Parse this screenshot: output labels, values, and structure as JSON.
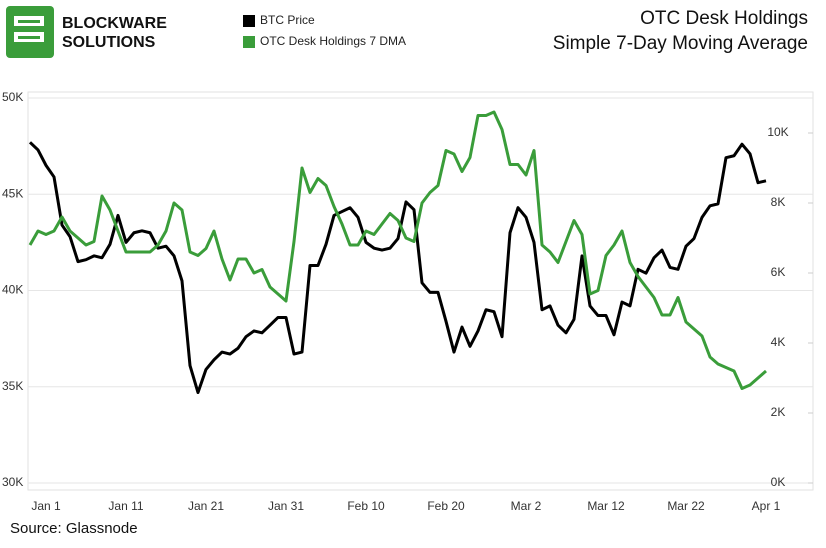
{
  "header": {
    "brand": [
      "BLOCKWARE",
      "SOLUTIONS"
    ]
  },
  "chart_data": {
    "type": "line",
    "title": "OTC Desk Holdings",
    "subtitle": "Simple 7-Day Moving Average",
    "source": "Source: Glassnode",
    "categories": [
      null,
      null,
      "Jan 1",
      null,
      null,
      null,
      null,
      null,
      null,
      null,
      null,
      null,
      "Jan 11",
      null,
      null,
      null,
      null,
      null,
      null,
      null,
      null,
      null,
      "Jan 21",
      null,
      null,
      null,
      null,
      null,
      null,
      null,
      null,
      null,
      "Jan 31",
      null,
      null,
      null,
      null,
      null,
      null,
      null,
      null,
      null,
      "Feb 10",
      null,
      null,
      null,
      null,
      null,
      null,
      null,
      null,
      null,
      "Feb 20",
      null,
      null,
      null,
      null,
      null,
      null,
      null,
      null,
      null,
      "Mar 2",
      null,
      null,
      null,
      null,
      null,
      null,
      null,
      null,
      null,
      "Mar 12",
      null,
      null,
      null,
      null,
      null,
      null,
      null,
      null,
      null,
      "Mar 22",
      null,
      null,
      null,
      null,
      null,
      null,
      null,
      null,
      null,
      "Apr 1"
    ],
    "series": [
      {
        "name": "BTC Price",
        "color": "#000000",
        "axis": "y",
        "values": [
          47700,
          47300,
          46500,
          45900,
          43400,
          42800,
          41500,
          41600,
          41800,
          41700,
          42400,
          43900,
          42500,
          43000,
          43100,
          43000,
          42200,
          42300,
          41800,
          40500,
          36100,
          34700,
          35900,
          36400,
          36800,
          36700,
          37000,
          37600,
          37900,
          37800,
          38200,
          38600,
          38600,
          36700,
          36800,
          41300,
          41300,
          42400,
          43900,
          44100,
          44300,
          43800,
          42500,
          42200,
          42100,
          42200,
          42700,
          44600,
          44200,
          40400,
          39900,
          39900,
          38400,
          36800,
          38100,
          37100,
          37900,
          39000,
          38900,
          37600,
          43000,
          44300,
          43800,
          42500,
          39000,
          39200,
          38200,
          37800,
          38500,
          41800,
          39200,
          38700,
          38700,
          37700,
          39400,
          39200,
          41100,
          40900,
          41700,
          42100,
          41200,
          41100,
          42300,
          42700,
          43800,
          44400,
          44500,
          46900,
          47000,
          47600,
          47100,
          45600,
          45700
        ]
      },
      {
        "name": "OTC Desk Holdings 7 DMA",
        "color": "#3a9d3a",
        "axis": "y2",
        "values": [
          6800,
          7200,
          7100,
          7200,
          7600,
          7200,
          7000,
          6800,
          6900,
          8200,
          7800,
          7200,
          6600,
          6600,
          6600,
          6600,
          6800,
          7200,
          8000,
          7800,
          6600,
          6500,
          6700,
          7200,
          6400,
          5800,
          6400,
          6400,
          6000,
          6100,
          5600,
          5400,
          5200,
          6900,
          9000,
          8300,
          8700,
          8500,
          7900,
          7400,
          6800,
          6800,
          7200,
          7100,
          7400,
          7700,
          7500,
          7000,
          6900,
          8000,
          8300,
          8500,
          9500,
          9400,
          8900,
          9300,
          10500,
          10500,
          10600,
          10100,
          9100,
          9100,
          8800,
          9500,
          6800,
          6600,
          6300,
          6900,
          7500,
          7100,
          5400,
          5500,
          6500,
          6800,
          7200,
          6300,
          5900,
          5600,
          5300,
          4800,
          4800,
          5300,
          4600,
          4400,
          4200,
          3600,
          3400,
          3300,
          3200,
          2700,
          2800,
          3000,
          3200
        ]
      }
    ],
    "ylim": [
      30000,
      50000
    ],
    "yticks": [
      {
        "value": 30000,
        "label": "30K"
      },
      {
        "value": 35000,
        "label": "35K"
      },
      {
        "value": 40000,
        "label": "40K"
      },
      {
        "value": 45000,
        "label": "45K"
      },
      {
        "value": 50000,
        "label": "50K"
      }
    ],
    "y2lim": [
      0,
      11000
    ],
    "y2ticks": [
      {
        "value": 0,
        "label": "0K"
      },
      {
        "value": 2000,
        "label": "2K"
      },
      {
        "value": 4000,
        "label": "4K"
      },
      {
        "value": 6000,
        "label": "6K"
      },
      {
        "value": 8000,
        "label": "8K"
      },
      {
        "value": 10000,
        "label": "10K"
      }
    ],
    "grid": true
  }
}
